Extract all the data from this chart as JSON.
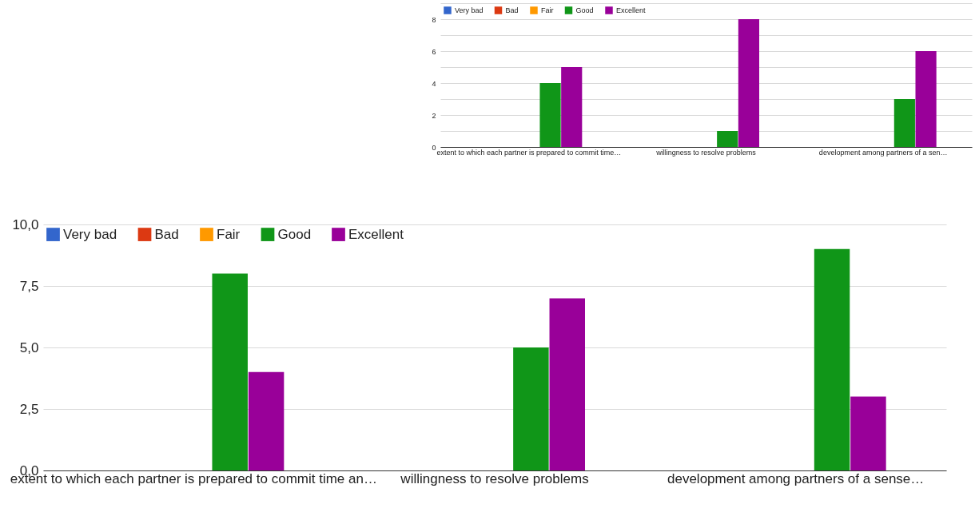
{
  "chart_data": [
    {
      "type": "bar",
      "categories": [
        "extent to which each partner is prepared to commit time…",
        "willingness to resolve problems",
        "development among partners of a sen…"
      ],
      "series": [
        {
          "name": "Very bad",
          "color": "#3366cc",
          "values": [
            0,
            0,
            0
          ]
        },
        {
          "name": "Bad",
          "color": "#dc3912",
          "values": [
            0,
            0,
            0
          ]
        },
        {
          "name": "Fair",
          "color": "#ff9900",
          "values": [
            0,
            0,
            0
          ]
        },
        {
          "name": "Good",
          "color": "#109618",
          "values": [
            4,
            1,
            3
          ]
        },
        {
          "name": "Excellent",
          "color": "#990099",
          "values": [
            5,
            8,
            6
          ]
        }
      ],
      "ylim": [
        0,
        9
      ],
      "yticks": [
        0,
        {
          "value": 1,
          "label": null
        },
        2,
        {
          "value": 3,
          "label": null
        },
        4,
        {
          "value": 5,
          "label": null
        },
        6,
        {
          "value": 7,
          "label": null
        },
        8,
        {
          "value": 9,
          "label": null
        }
      ],
      "grid": true,
      "legend": "top left"
    },
    {
      "type": "bar",
      "categories": [
        "extent to which each partner is prepared to commit time an…",
        "willingness to resolve problems",
        "development among partners of a sense…"
      ],
      "series": [
        {
          "name": "Very bad",
          "color": "#3366cc",
          "values": [
            0,
            0,
            0
          ]
        },
        {
          "name": "Bad",
          "color": "#dc3912",
          "values": [
            0,
            0,
            0
          ]
        },
        {
          "name": "Fair",
          "color": "#ff9900",
          "values": [
            0,
            0,
            0
          ]
        },
        {
          "name": "Good",
          "color": "#109618",
          "values": [
            8,
            5,
            9
          ]
        },
        {
          "name": "Excellent",
          "color": "#990099",
          "values": [
            4,
            7,
            3
          ]
        }
      ],
      "ylim": [
        0,
        10
      ],
      "yticks": [
        {
          "value": 0,
          "label": "0,0"
        },
        {
          "value": 2.5,
          "label": "2,5"
        },
        {
          "value": 5,
          "label": "5,0"
        },
        {
          "value": 7.5,
          "label": "7,5"
        },
        {
          "value": 10,
          "label": "10,0"
        }
      ],
      "grid": true,
      "legend": "top left"
    }
  ]
}
